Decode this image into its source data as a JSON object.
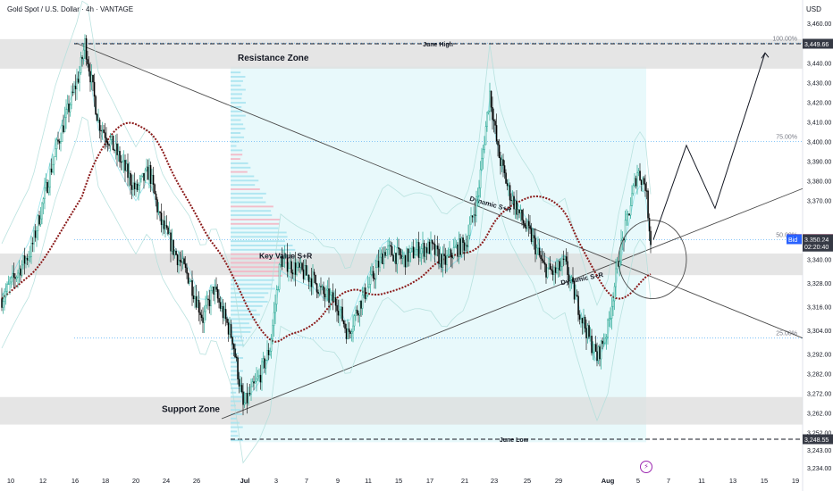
{
  "header": {
    "symbol_title": "Gold Spot / U.S. Dollar · 4h · VANTAGE",
    "currency": "USD"
  },
  "colors": {
    "up_candle": "#089981",
    "down_candle": "#000000",
    "zone_fill": "#dcdcdc",
    "profile_up": "#a9e3ef",
    "profile_down": "#f3b6c4",
    "ma_line": "#8b1a1a",
    "fib_line": "#64b5f6",
    "ask": "#f23645",
    "bid": "#2962ff",
    "price_label": "#131722"
  },
  "chart_data": {
    "type": "candlestick",
    "title": "Gold Spot / U.S. Dollar · 4h · VANTAGE",
    "y_axis_unit": "USD",
    "y_range": [
      3230,
      3462
    ],
    "y_ticks": [
      3460,
      3440,
      3430,
      3420,
      3410,
      3400,
      3390,
      3380,
      3370,
      3340,
      3328,
      3316,
      3304,
      3292,
      3282,
      3272,
      3262,
      3252,
      3243,
      3234
    ],
    "y_tick_labels": [
      "3,460.00",
      "3,440.00",
      "3,430.00",
      "3,420.00",
      "3,410.00",
      "3,400.00",
      "3,390.00",
      "3,380.00",
      "3,370.00",
      "3,340.00",
      "3,328.00",
      "3,316.00",
      "3,304.00",
      "3,292.00",
      "3,282.00",
      "3,272.00",
      "3,262.00",
      "3,252.00",
      "3,243.00",
      "3,234.00"
    ],
    "x_tick_labels": [
      "10",
      "12",
      "16",
      "18",
      "20",
      "24",
      "26",
      "Jul",
      "3",
      "7",
      "9",
      "11",
      "15",
      "17",
      "21",
      "23",
      "25",
      "29",
      "Aug",
      "5",
      "7",
      "11",
      "13",
      "15",
      "19"
    ],
    "price_labels": [
      {
        "name": "june-high",
        "value": 3449.66,
        "label": "3,449.66"
      },
      {
        "name": "ask",
        "value": 3350.33,
        "label": "3,350.33",
        "tag": "Ask"
      },
      {
        "name": "bid",
        "value": 3350.26,
        "label": "3,350.26",
        "tag": "Bid"
      },
      {
        "name": "last",
        "value": 3350.24,
        "label": "3,350.24"
      },
      {
        "name": "countdown",
        "value": 3346.5,
        "label": "02:20:40"
      },
      {
        "name": "june-low",
        "value": 3248.55,
        "label": "3,248.55"
      }
    ],
    "fib_levels": [
      {
        "label": "100.00%",
        "value": 3450
      },
      {
        "label": "75.00%",
        "value": 3400
      },
      {
        "label": "50.00%",
        "value": 3350
      },
      {
        "label": "25.00%",
        "value": 3300
      }
    ],
    "zones": [
      {
        "label": "Resistance Zone",
        "from": 3437,
        "to": 3452
      },
      {
        "label": "Key Value S+R",
        "from": 3332,
        "to": 3343
      },
      {
        "label": "Support Zone",
        "from": 3256,
        "to": 3270
      }
    ],
    "annotations": [
      "June High",
      "June Low",
      "Dynamic S+R",
      "Dynamic S+R",
      "Key Value S+R",
      "Resistance Zone",
      "Support Zone"
    ],
    "candle_seed": 7,
    "candle_path_anchors": [
      [
        0,
        3320
      ],
      [
        22,
        3345
      ],
      [
        40,
        3395
      ],
      [
        58,
        3435
      ],
      [
        62,
        3450
      ],
      [
        72,
        3410
      ],
      [
        85,
        3395
      ],
      [
        100,
        3375
      ],
      [
        110,
        3385
      ],
      [
        118,
        3360
      ],
      [
        128,
        3345
      ],
      [
        140,
        3330
      ],
      [
        150,
        3310
      ],
      [
        158,
        3325
      ],
      [
        172,
        3300
      ],
      [
        180,
        3265
      ],
      [
        184,
        3270
      ],
      [
        192,
        3280
      ],
      [
        200,
        3295
      ],
      [
        208,
        3340
      ],
      [
        220,
        3335
      ],
      [
        232,
        3330
      ],
      [
        240,
        3322
      ],
      [
        250,
        3318
      ],
      [
        258,
        3302
      ],
      [
        266,
        3316
      ],
      [
        276,
        3330
      ],
      [
        286,
        3345
      ],
      [
        300,
        3340
      ],
      [
        310,
        3345
      ],
      [
        320,
        3346
      ],
      [
        330,
        3338
      ],
      [
        338,
        3345
      ],
      [
        346,
        3348
      ],
      [
        355,
        3372
      ],
      [
        364,
        3425
      ],
      [
        370,
        3395
      ],
      [
        378,
        3375
      ],
      [
        388,
        3360
      ],
      [
        396,
        3350
      ],
      [
        404,
        3336
      ],
      [
        412,
        3333
      ],
      [
        420,
        3338
      ],
      [
        428,
        3320
      ],
      [
        438,
        3300
      ],
      [
        444,
        3290
      ],
      [
        452,
        3305
      ],
      [
        460,
        3340
      ],
      [
        468,
        3365
      ],
      [
        474,
        3385
      ],
      [
        480,
        3378
      ],
      [
        484,
        3350
      ]
    ],
    "n_candles": 485
  }
}
